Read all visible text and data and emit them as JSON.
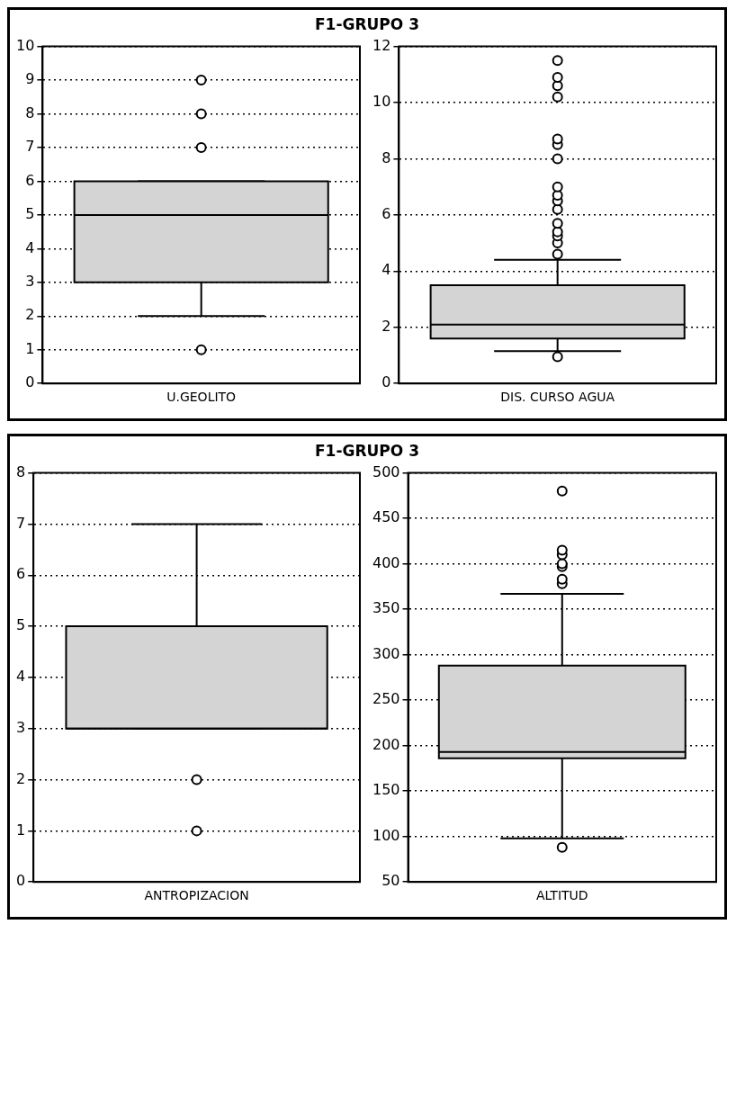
{
  "chart_data": [
    {
      "type": "box",
      "title": "F1-GRUPO 3",
      "categories": [
        "U.GEOLITO"
      ],
      "series": [
        {
          "color": "#d4d4d4",
          "boxes": [
            {
              "low": 2,
              "q1": 3,
              "median": 5,
              "q3": 6,
              "high": 6,
              "outliers": [
                1,
                7,
                8,
                9
              ]
            }
          ]
        }
      ],
      "ylim": [
        0,
        10
      ],
      "yticks": [
        0,
        1,
        2,
        3,
        4,
        5,
        6,
        7,
        8,
        9,
        10
      ],
      "grid": "y",
      "marker": "circle"
    },
    {
      "type": "box",
      "categories": [
        "DIS. CURSO AGUA"
      ],
      "series": [
        {
          "color": "#d4d4d4",
          "boxes": [
            {
              "low": 1.15,
              "q1": 1.6,
              "median": 2.1,
              "q3": 3.5,
              "high": 4.4,
              "outliers": [
                0.95,
                4.6,
                5.0,
                5.25,
                5.4,
                5.7,
                6.2,
                6.5,
                6.7,
                7.0,
                8.0,
                8.5,
                8.7,
                10.2,
                10.6,
                10.9,
                11.5
              ]
            }
          ]
        }
      ],
      "ylim": [
        0,
        12
      ],
      "yticks": [
        0,
        2,
        4,
        6,
        8,
        10,
        12
      ],
      "grid": "y",
      "marker": "circle"
    },
    {
      "type": "box",
      "title": "F1-GRUPO 3",
      "categories": [
        "ANTROPIZACION"
      ],
      "series": [
        {
          "color": "#d4d4d4",
          "boxes": [
            {
              "low": 3,
              "q1": 3,
              "median": 3,
              "q3": 5,
              "high": 7,
              "outliers": [
                1,
                2
              ]
            }
          ]
        }
      ],
      "ylim": [
        0,
        8
      ],
      "yticks": [
        0,
        1,
        2,
        3,
        4,
        5,
        6,
        7,
        8
      ],
      "grid": "y",
      "marker": "circle"
    },
    {
      "type": "box",
      "categories": [
        "ALTITUD"
      ],
      "series": [
        {
          "color": "#d4d4d4",
          "boxes": [
            {
              "low": 98,
              "q1": 186,
              "median": 193,
              "q3": 288,
              "high": 367,
              "outliers": [
                88,
                378,
                383,
                397,
                400,
                410,
                415,
                480
              ]
            }
          ]
        }
      ],
      "ylim": [
        50,
        500
      ],
      "yticks": [
        50,
        100,
        150,
        200,
        250,
        300,
        350,
        400,
        450,
        500
      ],
      "grid": "y",
      "marker": "circle"
    }
  ]
}
